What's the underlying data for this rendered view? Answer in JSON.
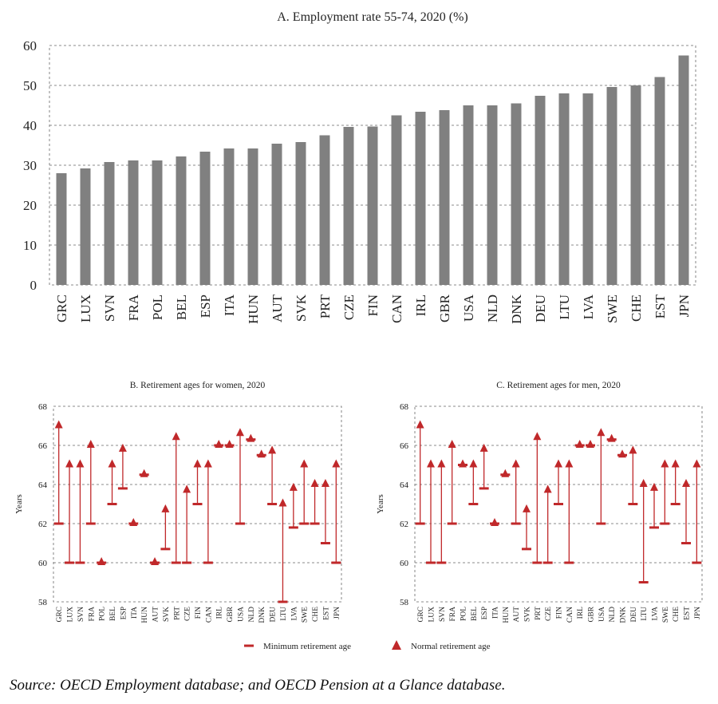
{
  "source_note": "Source: OECD Employment database; and OECD Pension at a Glance database.",
  "colors": {
    "bar": "#808080",
    "marker": "#c0282a",
    "grid": "#666666"
  },
  "chart_data": [
    {
      "type": "bar",
      "title": "A. Employment rate 55-74, 2020 (%)",
      "ylim": [
        0,
        60
      ],
      "yticks": [
        0,
        10,
        20,
        30,
        40,
        50,
        60
      ],
      "grid": true,
      "categories": [
        "GRC",
        "LUX",
        "SVN",
        "FRA",
        "POL",
        "BEL",
        "ESP",
        "ITA",
        "HUN",
        "AUT",
        "SVK",
        "PRT",
        "CZE",
        "FIN",
        "CAN",
        "IRL",
        "GBR",
        "USA",
        "NLD",
        "DNK",
        "DEU",
        "LTU",
        "LVA",
        "SWE",
        "CHE",
        "EST",
        "JPN"
      ],
      "values": [
        28.0,
        29.2,
        30.8,
        31.2,
        31.2,
        32.2,
        33.4,
        34.2,
        34.2,
        35.4,
        35.8,
        37.5,
        39.6,
        39.7,
        42.5,
        43.4,
        43.8,
        45.0,
        45.0,
        45.5,
        47.4,
        48.0,
        48.0,
        49.6,
        50.0,
        52.1,
        57.5
      ]
    },
    {
      "type": "scatter",
      "title": "B. Retirement ages for women, 2020",
      "ylabel": "Years",
      "ylim": [
        58,
        68
      ],
      "yticks": [
        58,
        60,
        62,
        64,
        66,
        68
      ],
      "grid": true,
      "categories": [
        "GRC",
        "LUX",
        "SVN",
        "FRA",
        "POL",
        "BEL",
        "ESP",
        "ITA",
        "HUN",
        "AUT",
        "SVK",
        "PRT",
        "CZE",
        "FIN",
        "CAN",
        "IRL",
        "GBR",
        "USA",
        "NLD",
        "DNK",
        "DEU",
        "LTU",
        "LVA",
        "SWE",
        "CHE",
        "EST",
        "JPN"
      ],
      "minimum": [
        62,
        60,
        60,
        62,
        60,
        63,
        63.8,
        62,
        64.5,
        60,
        60.7,
        60,
        60,
        63,
        60,
        66,
        66,
        62,
        66.3,
        65.5,
        63,
        58,
        61.8,
        62,
        62,
        61,
        60
      ],
      "normal": [
        67,
        65,
        65,
        66,
        60,
        65,
        65.8,
        62,
        64.5,
        60,
        62.7,
        66.4,
        63.7,
        65,
        65,
        66,
        66,
        66.6,
        66.3,
        65.5,
        65.7,
        63,
        63.8,
        65,
        64,
        64,
        65
      ]
    },
    {
      "type": "scatter",
      "title": "C. Retirement ages for men, 2020",
      "ylabel": "Years",
      "ylim": [
        58,
        68
      ],
      "yticks": [
        58,
        60,
        62,
        64,
        66,
        68
      ],
      "grid": true,
      "categories": [
        "GRC",
        "LUX",
        "SVN",
        "FRA",
        "POL",
        "BEL",
        "ESP",
        "ITA",
        "HUN",
        "AUT",
        "SVK",
        "PRT",
        "CZE",
        "FIN",
        "CAN",
        "IRL",
        "GBR",
        "USA",
        "NLD",
        "DNK",
        "DEU",
        "LTU",
        "LVA",
        "SWE",
        "CHE",
        "EST",
        "JPN"
      ],
      "minimum": [
        62,
        60,
        60,
        62,
        65,
        63,
        63.8,
        62,
        64.5,
        62,
        60.7,
        60,
        60,
        63,
        60,
        66,
        66,
        62,
        66.3,
        65.5,
        63,
        59,
        61.8,
        62,
        63,
        61,
        60
      ],
      "normal": [
        67,
        65,
        65,
        66,
        65,
        65,
        65.8,
        62,
        64.5,
        65,
        62.7,
        66.4,
        63.7,
        65,
        65,
        66,
        66,
        66.6,
        66.3,
        65.5,
        65.7,
        64,
        63.8,
        65,
        65,
        64,
        65
      ]
    }
  ],
  "legend": {
    "placement": "bottom-center",
    "minimum_label": "Minimum retirement age",
    "normal_label": "Normal retirement age"
  }
}
